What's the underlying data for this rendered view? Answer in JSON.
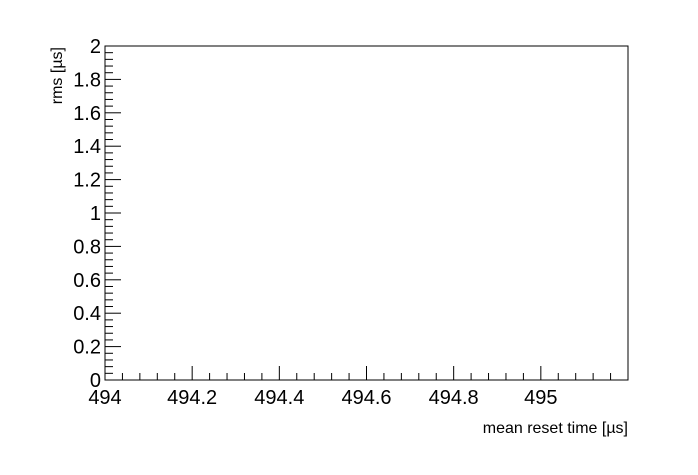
{
  "chart_data": {
    "type": "scatter",
    "title": "",
    "xlabel": "mean reset time [µs]",
    "ylabel": "rms [µs]",
    "xlim": [
      494,
      495.2
    ],
    "ylim": [
      0,
      2
    ],
    "x_major_ticks": [
      494,
      494.2,
      494.4,
      494.6,
      494.8,
      495
    ],
    "x_tick_labels": [
      "494",
      "494.2",
      "494.4",
      "494.6",
      "494.8",
      "495"
    ],
    "y_major_ticks": [
      0,
      0.2,
      0.4,
      0.6,
      0.8,
      1,
      1.2,
      1.4,
      1.6,
      1.8,
      2
    ],
    "y_tick_labels": [
      "0",
      "0.2",
      "0.4",
      "0.6",
      "0.8",
      "1",
      "1.2",
      "1.4",
      "1.6",
      "1.8",
      "2"
    ],
    "x": [],
    "y": [],
    "grid": false,
    "legend": "none"
  }
}
